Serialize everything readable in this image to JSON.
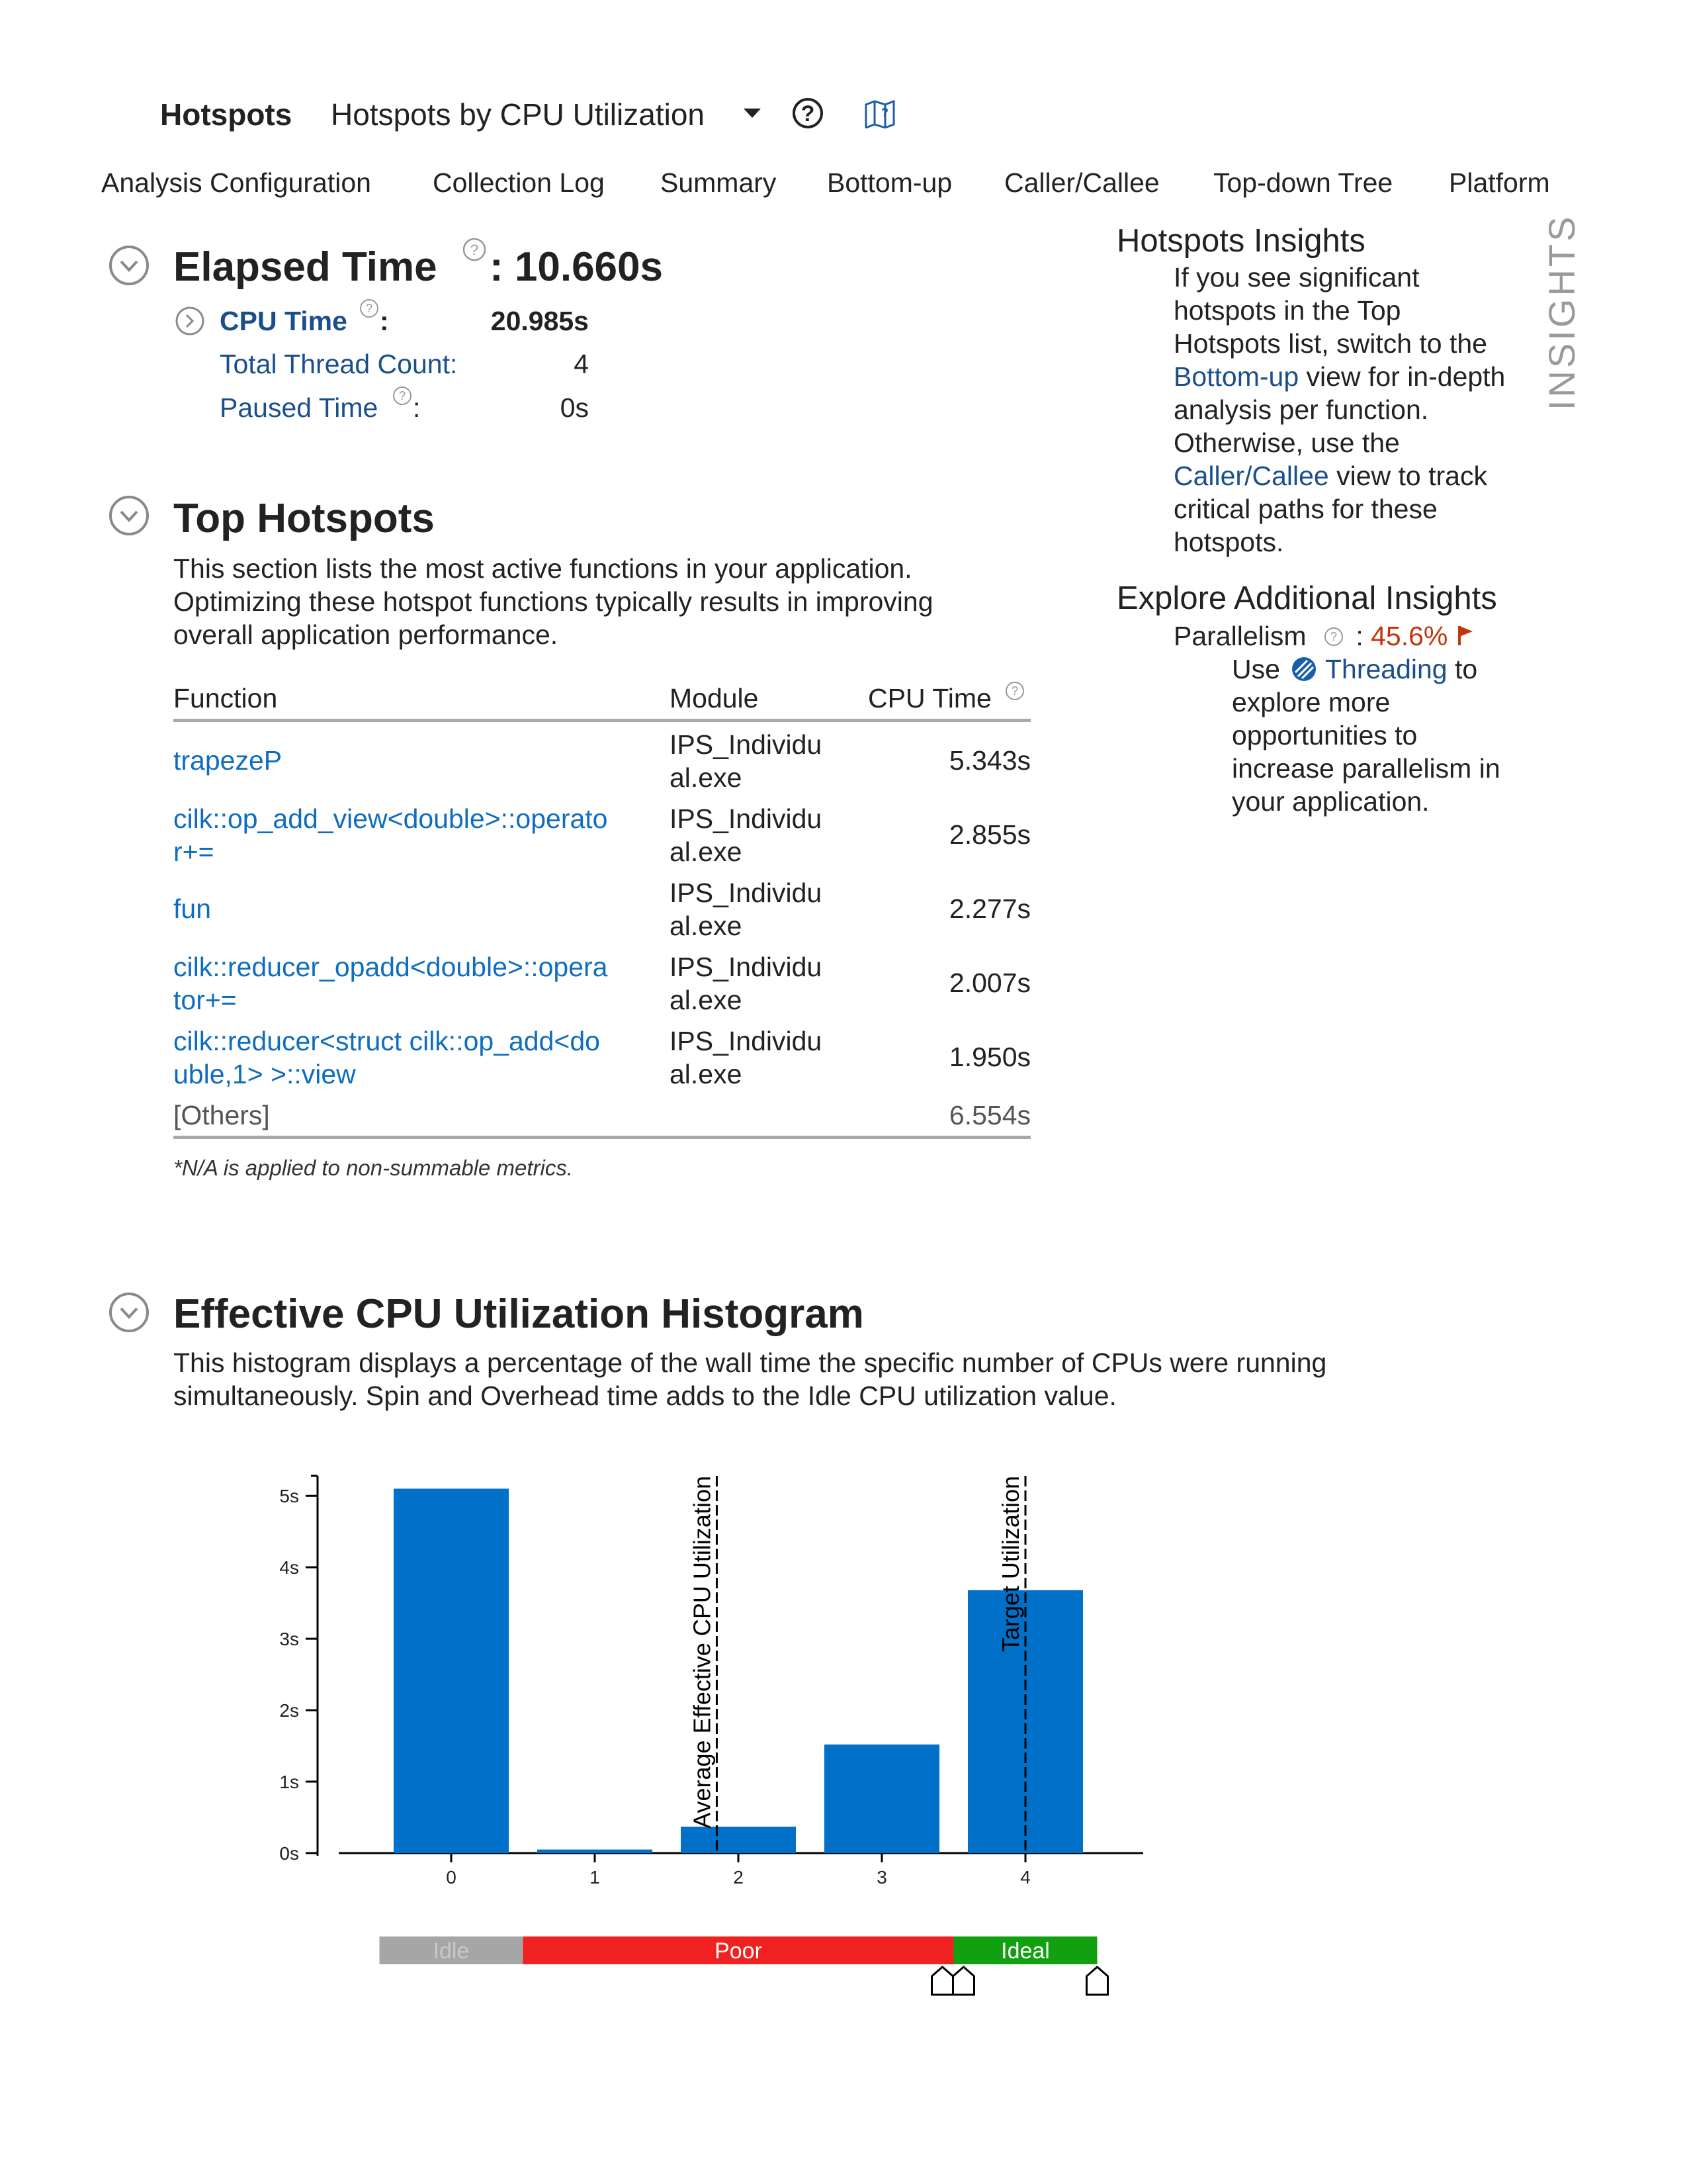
{
  "header": {
    "title": "Hotspots",
    "view": "Hotspots by CPU Utilization",
    "help_icon": "question-circle-icon",
    "map_icon": "guide-map-icon"
  },
  "tabs": [
    {
      "label": "Analysis Configuration"
    },
    {
      "label": "Collection Log"
    },
    {
      "label": "Summary"
    },
    {
      "label": "Bottom-up"
    },
    {
      "label": "Caller/Callee"
    },
    {
      "label": "Top-down Tree"
    },
    {
      "label": "Platform"
    }
  ],
  "elapsed": {
    "label": "Elapsed Time",
    "colon": ":",
    "value": "10.660s",
    "cpu_time_label": "CPU Time",
    "cpu_time_value": "20.985s",
    "thread_count_label": "Total Thread Count:",
    "thread_count_value": "4",
    "paused_label": "Paused Time",
    "paused_value": "0s",
    "colon_small": ":"
  },
  "top_hotspots": {
    "title": "Top Hotspots",
    "desc_lines": [
      "This section lists the most active functions in your application.",
      "Optimizing these hotspot functions typically results in improving",
      "overall application performance."
    ],
    "columns": {
      "function": "Function",
      "module": "Module",
      "cpu_time": "CPU Time"
    },
    "rows": [
      {
        "function": [
          "trapezeP"
        ],
        "module": [
          "IPS_Individu",
          "al.exe"
        ],
        "cpu_time": "5.343s"
      },
      {
        "function": [
          "cilk::op_add_view<double>::operato",
          "r+="
        ],
        "module": [
          "IPS_Individu",
          "al.exe"
        ],
        "cpu_time": "2.855s"
      },
      {
        "function": [
          "fun"
        ],
        "module": [
          "IPS_Individu",
          "al.exe"
        ],
        "cpu_time": "2.277s"
      },
      {
        "function": [
          "cilk::reducer_opadd<double>::opera",
          "tor+="
        ],
        "module": [
          "IPS_Individu",
          "al.exe"
        ],
        "cpu_time": "2.007s"
      },
      {
        "function": [
          "cilk::reducer<struct cilk::op_add<do",
          "uble,1> >::view"
        ],
        "module": [
          "IPS_Individu",
          "al.exe"
        ],
        "cpu_time": "1.950s"
      }
    ],
    "others_label": "[Others]",
    "others_value": "6.554s",
    "footnote": "*N/A is applied to non-summable metrics."
  },
  "histogram": {
    "title": "Effective CPU Utilization Histogram",
    "desc_lines": [
      "This histogram displays a percentage of the wall time the specific number of CPUs were running",
      "simultaneously. Spin and Overhead time adds to the Idle CPU utilization value."
    ]
  },
  "insights": {
    "vertical_label": "INSIGHTS",
    "title": "Hotspots Insights",
    "lines": [
      {
        "t": "If you see significant"
      },
      {
        "t": "hotspots in the Top"
      },
      {
        "t": "Hotspots list, switch to the"
      },
      {
        "link": "Bottom-up",
        "t": " view for in-depth"
      },
      {
        "t": "analysis per function."
      },
      {
        "t": "Otherwise, use the"
      },
      {
        "link": "Caller/Callee",
        "t": " view to track"
      },
      {
        "t": "critical paths for these"
      },
      {
        "t": "hotspots."
      }
    ],
    "explore_title": "Explore Additional Insights",
    "parallelism_label": "Parallelism",
    "parallelism_colon": ":",
    "parallelism_value": "45.6%",
    "use_label": "Use",
    "threading_link": "Threading",
    "to_label": " to",
    "explore_lines": [
      "explore more",
      "opportunities to",
      "increase parallelism in",
      "your application."
    ]
  },
  "chart_data": {
    "type": "bar",
    "categories": [
      "0",
      "1",
      "2",
      "3",
      "4"
    ],
    "values": [
      5.1,
      0.05,
      0.37,
      1.52,
      3.68
    ],
    "y_ticks": [
      "0s",
      "1s",
      "2s",
      "3s",
      "4s",
      "5s"
    ],
    "ylim": [
      0,
      5.5
    ],
    "bar_color": "#0070c8",
    "markers": [
      {
        "label": "Average Effective CPU Utilization",
        "x": 1.85
      },
      {
        "label": "Target Utilization",
        "x": 4.0
      }
    ],
    "zones": [
      {
        "label": "Idle",
        "from": -0.5,
        "to": 0.5,
        "color": "#a6a6a6"
      },
      {
        "label": "Poor",
        "from": 0.5,
        "to": 3.5,
        "color": "#ef2121"
      },
      {
        "label": "Ideal",
        "from": 3.5,
        "to": 4.5,
        "color": "#10a010"
      }
    ],
    "grid": false
  }
}
